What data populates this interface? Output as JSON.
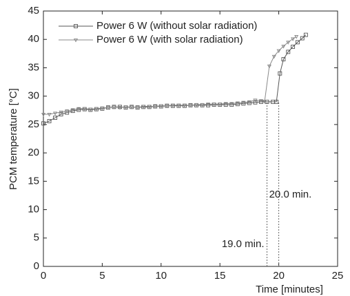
{
  "chart_data": {
    "type": "line",
    "x_label": "Time [minutes]",
    "y_label": "PCM temperature [°C]",
    "xlim": [
      0,
      25
    ],
    "xticks": [
      0,
      5,
      10,
      15,
      20,
      25
    ],
    "ylim": [
      0,
      45
    ],
    "yticks": [
      0,
      5,
      10,
      15,
      20,
      25,
      30,
      35,
      40,
      45
    ],
    "legend": "upper-left",
    "series": [
      {
        "name": "Power 6 W (without solar radiation)",
        "color": "#555555",
        "marker": "square",
        "x": [
          0,
          0.5,
          1,
          1.5,
          2,
          2.5,
          3,
          3.5,
          4,
          4.5,
          5,
          5.5,
          6,
          6.5,
          7,
          7.5,
          8,
          8.5,
          9,
          9.5,
          10,
          10.5,
          11,
          11.5,
          12,
          12.5,
          13,
          13.5,
          14,
          14.5,
          15,
          15.5,
          16,
          16.5,
          17,
          17.5,
          18,
          18.5,
          19,
          19.5,
          19.8,
          20.1,
          20.4,
          20.8,
          21.2,
          21.6,
          22,
          22.3
        ],
        "values": [
          25.2,
          25.6,
          26.2,
          26.8,
          27.1,
          27.4,
          27.6,
          27.7,
          27.6,
          27.7,
          27.8,
          28,
          28.1,
          28.1,
          28,
          28.1,
          28,
          28.1,
          28.1,
          28.2,
          28.2,
          28.3,
          28.3,
          28.3,
          28.3,
          28.4,
          28.4,
          28.4,
          28.4,
          28.5,
          28.5,
          28.5,
          28.5,
          28.6,
          28.7,
          28.8,
          28.9,
          29,
          29,
          29,
          29,
          34,
          36.5,
          37.8,
          38.7,
          39.5,
          40.2,
          40.8
        ]
      },
      {
        "name": "Power 6 W (with solar radiation)",
        "color": "#888888",
        "marker": "triangle",
        "x": [
          0,
          0.5,
          1,
          1.5,
          2,
          2.5,
          3,
          3.5,
          4,
          4.5,
          5,
          5.5,
          6,
          6.5,
          7,
          7.5,
          8,
          8.5,
          9,
          9.5,
          10,
          10.5,
          11,
          11.5,
          12,
          12.5,
          13,
          13.5,
          14,
          14.5,
          15,
          15.5,
          16,
          16.5,
          17,
          17.5,
          18,
          18.5,
          18.8,
          19.2,
          19.6,
          20,
          20.4,
          20.8,
          21.2,
          21.5
        ],
        "values": [
          26.8,
          26.8,
          27,
          27.2,
          27.4,
          27.6,
          27.8,
          27.8,
          27.7,
          27.8,
          27.9,
          28,
          28.1,
          28,
          28.1,
          28.1,
          28,
          28.2,
          28.2,
          28.2,
          28.3,
          28.3,
          28.4,
          28.4,
          28.4,
          28.4,
          28.5,
          28.5,
          28.6,
          28.6,
          28.6,
          28.7,
          28.7,
          28.8,
          28.9,
          29,
          29.3,
          29.2,
          29.1,
          35.3,
          37,
          38,
          38.8,
          39.5,
          40.1,
          40.5
        ]
      }
    ],
    "markers": [
      {
        "x": 19.0,
        "label": "19.0 min."
      },
      {
        "x": 20.0,
        "label": "20.0 min."
      }
    ]
  }
}
